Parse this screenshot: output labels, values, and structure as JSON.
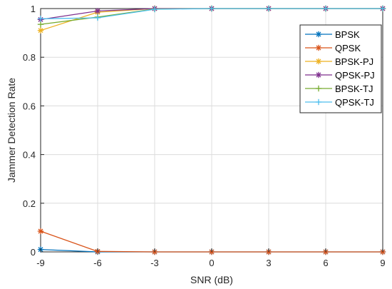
{
  "chart_data": {
    "type": "line",
    "xlabel": "SNR (dB)",
    "ylabel": "Jammer Detection Rate",
    "xlim": [
      -9,
      9
    ],
    "ylim": [
      0,
      1
    ],
    "x_ticks": [
      "-9",
      "-6",
      "-3",
      "0",
      "3",
      "6",
      "9"
    ],
    "y_ticks": [
      "0",
      "0.2",
      "0.4",
      "0.6",
      "0.8",
      "1"
    ],
    "grid": true,
    "legend_position": "top-right",
    "x": [
      -9,
      -6,
      -3,
      0,
      3,
      6,
      9
    ],
    "series": [
      {
        "name": "BPSK",
        "color": "#0072BD",
        "marker": "asterisk",
        "values": [
          0.01,
          0.0,
          0.0,
          0.0,
          0.0,
          0.0,
          0.0
        ]
      },
      {
        "name": "QPSK",
        "color": "#D95319",
        "marker": "asterisk",
        "values": [
          0.085,
          0.002,
          0.0,
          0.0,
          0.0,
          0.0,
          0.0
        ]
      },
      {
        "name": "BPSK-PJ",
        "color": "#EDB120",
        "marker": "asterisk",
        "values": [
          0.91,
          0.985,
          1.0,
          1.0,
          1.0,
          1.0,
          1.0
        ]
      },
      {
        "name": "QPSK-PJ",
        "color": "#7E2F8E",
        "marker": "asterisk",
        "values": [
          0.955,
          0.99,
          1.0,
          1.0,
          1.0,
          1.0,
          1.0
        ]
      },
      {
        "name": "BPSK-TJ",
        "color": "#77AC30",
        "marker": "plus",
        "values": [
          0.935,
          0.965,
          0.998,
          1.0,
          1.0,
          1.0,
          1.0
        ]
      },
      {
        "name": "QPSK-TJ",
        "color": "#4DBEEE",
        "marker": "plus",
        "values": [
          0.958,
          0.962,
          0.997,
          1.0,
          1.0,
          1.0,
          1.0
        ]
      }
    ]
  }
}
